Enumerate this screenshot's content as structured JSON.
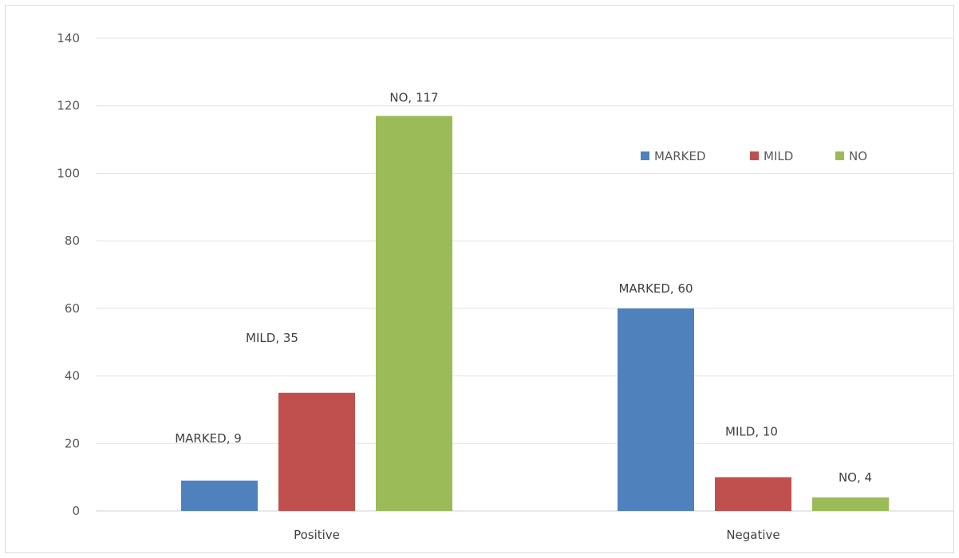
{
  "chart_data": {
    "type": "bar",
    "categories": [
      "Positive",
      "Negative"
    ],
    "series": [
      {
        "name": "MARKED",
        "color": "#4f81bd",
        "values": [
          9,
          60
        ]
      },
      {
        "name": "MILD",
        "color": "#c0504d",
        "values": [
          35,
          10
        ]
      },
      {
        "name": "NO",
        "color": "#9bbb59",
        "values": [
          117,
          4
        ]
      }
    ],
    "data_labels": [
      [
        "MARKED, 9",
        "MARKED, 60"
      ],
      [
        "MILD, 35",
        "MILD, 10"
      ],
      [
        "NO, 117",
        "NO, 4"
      ]
    ],
    "yticks": [
      0,
      20,
      40,
      60,
      80,
      100,
      120,
      140
    ],
    "ylim": [
      0,
      140
    ],
    "title": "",
    "xlabel": "",
    "ylabel": "",
    "grid": true,
    "legend_position": "top-right"
  }
}
